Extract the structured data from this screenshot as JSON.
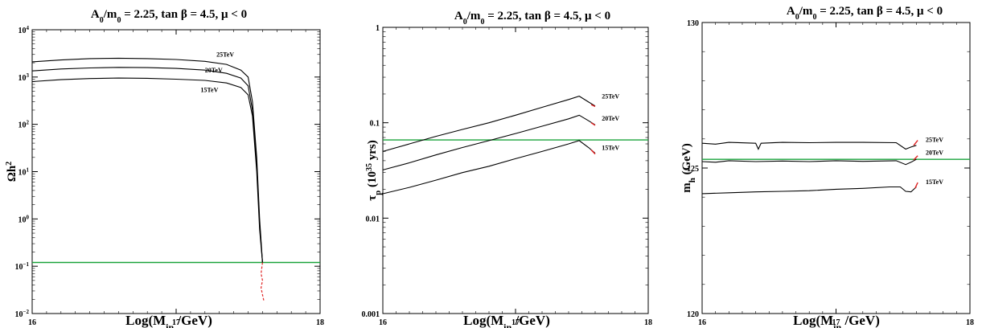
{
  "chart_data": [
    {
      "type": "line",
      "title": "A0/m0 = 2.25, tan β = 4.5, μ < 0",
      "xlabel": "Log(Min /GeV)",
      "ylabel": "Ωh2",
      "xlim": [
        16,
        18
      ],
      "ylim": [
        0.01,
        10000
      ],
      "yscale": "log",
      "grid": false,
      "xticks": [
        "16",
        "17",
        "18"
      ],
      "yticks": [
        {
          "v": 0.01,
          "m": "10",
          "e": "−2"
        },
        {
          "v": 0.1,
          "m": "10",
          "e": "−1"
        },
        {
          "v": 1,
          "m": "10",
          "e": "0"
        },
        {
          "v": 10,
          "m": "10",
          "e": "1"
        },
        {
          "v": 100,
          "m": "10",
          "e": "2"
        },
        {
          "v": 1000,
          "m": "10",
          "e": "3"
        },
        {
          "v": 10000,
          "m": "10",
          "e": "4"
        }
      ],
      "hline": {
        "y": 0.12,
        "color": "#1aa33b"
      },
      "series": [
        {
          "name": "25TeV",
          "color": "#000000",
          "x": [
            16.0,
            16.2,
            16.4,
            16.6,
            16.8,
            17.0,
            17.2,
            17.35,
            17.45,
            17.5,
            17.53,
            17.56,
            17.58,
            17.6
          ],
          "y": [
            2100,
            2300,
            2450,
            2500,
            2450,
            2350,
            2150,
            1850,
            1400,
            1000,
            300,
            20,
            1,
            0.12
          ],
          "label_at": [
            17.28,
            2700
          ]
        },
        {
          "name": "20TeV",
          "color": "#000000",
          "x": [
            16.0,
            16.2,
            16.4,
            16.6,
            16.8,
            17.0,
            17.2,
            17.35,
            17.45,
            17.5,
            17.53,
            17.56,
            17.58,
            17.6
          ],
          "y": [
            1350,
            1480,
            1560,
            1600,
            1580,
            1520,
            1400,
            1200,
            950,
            650,
            200,
            15,
            0.8,
            0.12
          ],
          "label_at": [
            17.2,
            1250
          ]
        },
        {
          "name": "15TeV",
          "color": "#000000",
          "x": [
            16.0,
            16.2,
            16.4,
            16.6,
            16.8,
            17.0,
            17.2,
            17.35,
            17.45,
            17.5,
            17.53,
            17.56,
            17.58,
            17.6
          ],
          "y": [
            800,
            880,
            930,
            950,
            940,
            900,
            850,
            750,
            600,
            420,
            150,
            10,
            0.6,
            0.12
          ],
          "label_at": [
            17.17,
            480
          ]
        }
      ],
      "red_tail": {
        "x": [
          17.6,
          17.59,
          17.6,
          17.59,
          17.6,
          17.61
        ],
        "y": [
          0.12,
          0.07,
          0.05,
          0.035,
          0.025,
          0.018
        ]
      }
    },
    {
      "type": "line",
      "title": "A0/m0 = 2.25, tan β = 4.5, μ < 0",
      "xlabel": "Log(Min /GeV)",
      "ylabel": "τp (1035 yrs)",
      "xlim": [
        16,
        18
      ],
      "ylim": [
        0.001,
        1
      ],
      "yscale": "log",
      "grid": false,
      "xticks": [
        "16",
        "17",
        "18"
      ],
      "yticks": [
        {
          "v": 0.001,
          "label": "0.001"
        },
        {
          "v": 0.01,
          "label": "0.01"
        },
        {
          "v": 0.1,
          "label": "0.1"
        },
        {
          "v": 1,
          "label": "1"
        }
      ],
      "hline": {
        "y": 0.066,
        "color": "#1aa33b"
      },
      "series": [
        {
          "name": "25TeV",
          "color": "#000000",
          "x": [
            16.0,
            16.2,
            16.4,
            16.6,
            16.8,
            17.0,
            17.2,
            17.4,
            17.48,
            17.55,
            17.6
          ],
          "y": [
            0.05,
            0.06,
            0.072,
            0.085,
            0.1,
            0.12,
            0.145,
            0.175,
            0.19,
            0.165,
            0.15
          ],
          "label_at": [
            17.65,
            0.18
          ]
        },
        {
          "name": "20TeV",
          "color": "#000000",
          "x": [
            16.0,
            16.2,
            16.4,
            16.6,
            16.8,
            17.0,
            17.2,
            17.4,
            17.48,
            17.55,
            17.6
          ],
          "y": [
            0.032,
            0.038,
            0.046,
            0.055,
            0.065,
            0.077,
            0.092,
            0.11,
            0.12,
            0.105,
            0.095
          ],
          "label_at": [
            17.65,
            0.105
          ]
        },
        {
          "name": "15TeV",
          "color": "#000000",
          "x": [
            16.0,
            16.2,
            16.4,
            16.6,
            16.8,
            17.0,
            17.2,
            17.4,
            17.48,
            17.55,
            17.6
          ],
          "y": [
            0.018,
            0.021,
            0.025,
            0.03,
            0.035,
            0.042,
            0.05,
            0.06,
            0.065,
            0.055,
            0.048
          ],
          "label_at": [
            17.65,
            0.052
          ]
        }
      ],
      "red_marks": [
        {
          "x": [
            17.57,
            17.6
          ],
          "y": [
            0.155,
            0.148
          ]
        },
        {
          "x": [
            17.57,
            17.6
          ],
          "y": [
            0.1,
            0.094
          ]
        },
        {
          "x": [
            17.57,
            17.6
          ],
          "y": [
            0.052,
            0.047
          ]
        }
      ]
    },
    {
      "type": "line",
      "title": "A0/m0 = 2.25, tan β = 4.5, μ < 0",
      "xlabel": "Log(Min /GeV)",
      "ylabel": "mh (GeV)",
      "xlim": [
        16,
        18
      ],
      "ylim": [
        120,
        130
      ],
      "yscale": "linear",
      "grid": false,
      "xticks": [
        "16",
        "17",
        "18"
      ],
      "yticks": [
        {
          "v": 120,
          "label": "120"
        },
        {
          "v": 125,
          "label": "125"
        },
        {
          "v": 130,
          "label": "130"
        }
      ],
      "hline": {
        "y": 125.3,
        "color": "#1aa33b"
      },
      "series": [
        {
          "name": "25TeV",
          "color": "#000000",
          "x": [
            16.0,
            16.1,
            16.2,
            16.4,
            16.42,
            16.44,
            16.6,
            16.8,
            17.0,
            17.2,
            17.45,
            17.52,
            17.56,
            17.6
          ],
          "y": [
            125.85,
            125.82,
            125.88,
            125.85,
            125.65,
            125.85,
            125.88,
            125.87,
            125.88,
            125.88,
            125.87,
            125.65,
            125.72,
            125.78
          ],
          "label_at": [
            17.67,
            125.9
          ]
        },
        {
          "name": "20TeV",
          "color": "#000000",
          "x": [
            16.0,
            16.1,
            16.2,
            16.4,
            16.6,
            16.8,
            17.0,
            17.2,
            17.45,
            17.52,
            17.56,
            17.6
          ],
          "y": [
            125.22,
            125.2,
            125.25,
            125.22,
            125.24,
            125.22,
            125.25,
            125.23,
            125.25,
            125.12,
            125.2,
            125.3
          ],
          "label_at": [
            17.67,
            125.45
          ]
        },
        {
          "name": "15TeV",
          "color": "#000000",
          "x": [
            16.0,
            16.2,
            16.4,
            16.6,
            16.8,
            17.0,
            17.2,
            17.4,
            17.48,
            17.52,
            17.56,
            17.6
          ],
          "y": [
            124.12,
            124.15,
            124.18,
            124.2,
            124.22,
            124.27,
            124.3,
            124.35,
            124.35,
            124.2,
            124.18,
            124.35
          ],
          "label_at": [
            17.67,
            124.45
          ]
        }
      ],
      "red_marks": [
        {
          "x": [
            17.58,
            17.61
          ],
          "y": [
            125.78,
            125.95
          ]
        },
        {
          "x": [
            17.58,
            17.61
          ],
          "y": [
            125.28,
            125.42
          ]
        },
        {
          "x": [
            17.59,
            17.61
          ],
          "y": [
            124.3,
            124.5
          ]
        }
      ]
    }
  ]
}
